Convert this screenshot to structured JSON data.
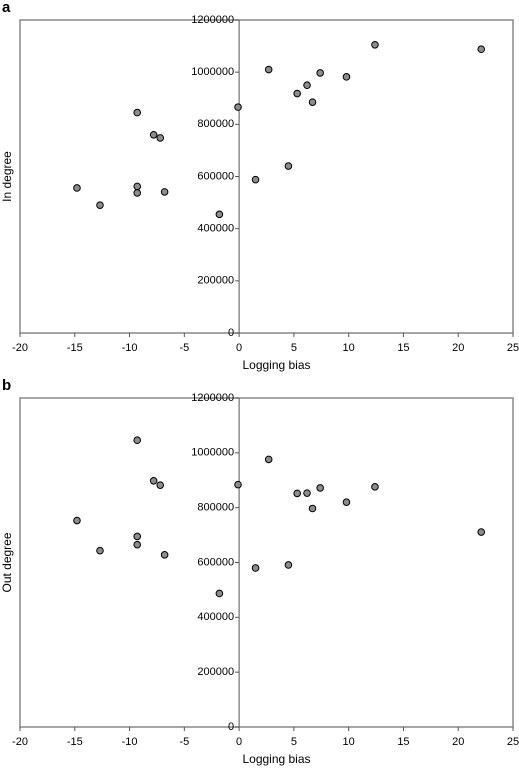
{
  "chart_data": [
    {
      "type": "scatter",
      "panel_label": "a",
      "xlabel": "Logging bias",
      "ylabel": "In degree",
      "x": [
        -14.8,
        -12.7,
        -9.3,
        -9.3,
        -9.3,
        -7.8,
        -7.2,
        -6.8,
        -1.8,
        -0.1,
        1.5,
        2.7,
        4.5,
        5.3,
        6.2,
        6.7,
        7.4,
        9.8,
        12.4,
        22.1
      ],
      "y": [
        556000,
        490000,
        845000,
        562000,
        537000,
        760000,
        748000,
        541000,
        455000,
        866000,
        588000,
        1010000,
        640000,
        918000,
        950000,
        885000,
        997000,
        982000,
        1105000,
        1088000
      ],
      "color": "#8c8c8c",
      "xlim": [
        -20,
        25
      ],
      "ylim": [
        0,
        1200000
      ],
      "xticks": [
        -20,
        -15,
        -10,
        -5,
        0,
        5,
        10,
        15,
        20,
        25
      ],
      "yticks": [
        0,
        200000,
        400000,
        600000,
        800000,
        1000000,
        1200000
      ]
    },
    {
      "type": "scatter",
      "panel_label": "b",
      "xlabel": "Logging bias",
      "ylabel": "Out degree",
      "x": [
        -14.8,
        -12.7,
        -9.3,
        -9.3,
        -9.3,
        -7.8,
        -7.2,
        -6.8,
        -1.8,
        -0.1,
        1.5,
        2.7,
        4.5,
        5.3,
        6.2,
        6.7,
        7.4,
        9.8,
        12.4,
        22.1
      ],
      "y": [
        753000,
        643000,
        1046000,
        695000,
        665000,
        898000,
        882000,
        628000,
        487000,
        884000,
        580000,
        976000,
        591000,
        852000,
        853000,
        797000,
        872000,
        820000,
        876000,
        711000
      ],
      "color": "#8c8c8c",
      "xlim": [
        -20,
        25
      ],
      "ylim": [
        0,
        1200000
      ],
      "xticks": [
        -20,
        -15,
        -10,
        -5,
        0,
        5,
        10,
        15,
        20,
        25
      ],
      "yticks": [
        0,
        200000,
        400000,
        600000,
        800000,
        1000000,
        1200000
      ]
    }
  ]
}
